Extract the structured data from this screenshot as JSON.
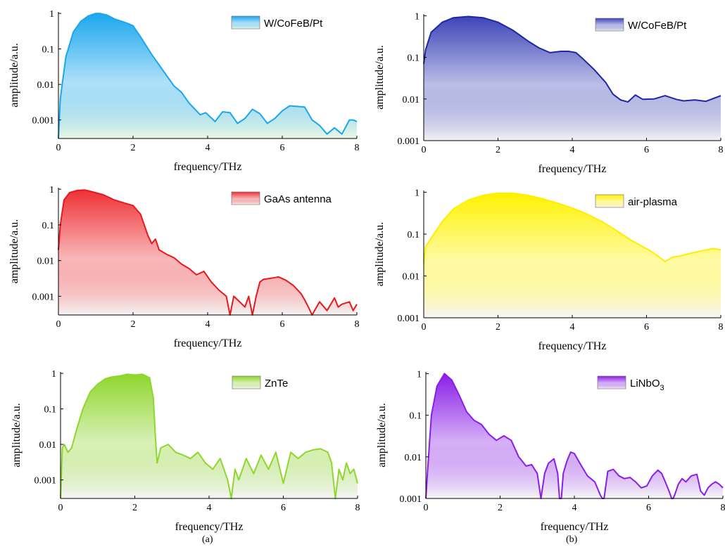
{
  "captions": {
    "a": "(a)",
    "b": "(b)"
  },
  "chart_data": [
    {
      "id": "a1",
      "type": "area",
      "legend": "W/CoFeB/Pt",
      "color": "#1aa7ee",
      "fill_top": "#1aa7ee",
      "fill_bottom": "#e8f7e0",
      "xlabel": "frequency/THz",
      "ylabel": "amplitude/a.u.",
      "xlim": [
        0,
        8
      ],
      "ylim": [
        0.0003,
        1.1
      ],
      "yscale": "log",
      "xticks": [
        "0",
        "2",
        "4",
        "6",
        "8"
      ],
      "yticks": [
        "0.001",
        "0.01",
        "0.1",
        "1"
      ],
      "x": [
        0,
        0.05,
        0.2,
        0.4,
        0.6,
        0.8,
        1.0,
        1.1,
        1.3,
        1.5,
        1.8,
        2.0,
        2.2,
        2.5,
        2.8,
        3.1,
        3.3,
        3.5,
        3.8,
        3.95,
        4.2,
        4.4,
        4.6,
        4.8,
        5.0,
        5.2,
        5.4,
        5.6,
        5.8,
        6.0,
        6.2,
        6.4,
        6.6,
        6.8,
        7.0,
        7.2,
        7.4,
        7.6,
        7.8,
        7.9,
        8.0
      ],
      "y": [
        0.0003,
        0.004,
        0.06,
        0.3,
        0.6,
        0.85,
        1.0,
        1.0,
        0.9,
        0.7,
        0.55,
        0.45,
        0.22,
        0.07,
        0.025,
        0.009,
        0.006,
        0.003,
        0.0014,
        0.0016,
        0.0009,
        0.0017,
        0.0016,
        0.0008,
        0.0011,
        0.002,
        0.0015,
        0.0008,
        0.0011,
        0.0018,
        0.0025,
        0.0024,
        0.0023,
        0.001,
        0.0007,
        0.0004,
        0.0006,
        0.0004,
        0.001,
        0.001,
        0.0009
      ]
    },
    {
      "id": "b1",
      "type": "area",
      "legend": "W/CoFeB/Pt",
      "color": "#1f27a6",
      "fill_top": "#3d45b8",
      "fill_bottom": "#f2f2f2",
      "xlabel": "frequency/THz",
      "ylabel": "amplitude/a.u.",
      "xlim": [
        0,
        8
      ],
      "ylim": [
        0.001,
        1.1
      ],
      "yscale": "log",
      "xticks": [
        "0",
        "2",
        "4",
        "6",
        "8"
      ],
      "yticks": [
        "0.001",
        "0.01",
        "0.1",
        "1"
      ],
      "x": [
        0,
        0.05,
        0.2,
        0.5,
        0.8,
        1.2,
        1.6,
        2.0,
        2.4,
        2.8,
        3.1,
        3.4,
        3.7,
        3.9,
        4.1,
        4.3,
        4.6,
        4.9,
        5.1,
        5.3,
        5.5,
        5.7,
        5.9,
        6.2,
        6.5,
        6.8,
        7.0,
        7.3,
        7.6,
        8.0
      ],
      "y": [
        0.07,
        0.15,
        0.4,
        0.7,
        0.9,
        0.96,
        0.9,
        0.7,
        0.45,
        0.25,
        0.17,
        0.13,
        0.14,
        0.14,
        0.13,
        0.09,
        0.05,
        0.025,
        0.013,
        0.0095,
        0.0085,
        0.0125,
        0.0098,
        0.01,
        0.012,
        0.0098,
        0.009,
        0.0095,
        0.0088,
        0.012
      ]
    },
    {
      "id": "a2",
      "type": "area",
      "legend": "GaAs antenna",
      "color": "#e8181c",
      "fill_top": "#ee3136",
      "fill_bottom": "#f3f3f3",
      "xlabel": "frequency/THz",
      "ylabel": "amplitude/a.u.",
      "xlim": [
        0,
        8
      ],
      "ylim": [
        0.0003,
        1.1
      ],
      "yscale": "log",
      "xticks": [
        "0",
        "2",
        "4",
        "6",
        "8"
      ],
      "yticks": [
        "0.001",
        "0.01",
        "0.1",
        "1"
      ],
      "x": [
        0,
        0.05,
        0.15,
        0.3,
        0.5,
        0.7,
        0.9,
        1.2,
        1.5,
        1.8,
        2.0,
        2.2,
        2.4,
        2.5,
        2.6,
        2.7,
        2.9,
        3.1,
        3.3,
        3.5,
        3.7,
        3.9,
        4.1,
        4.3,
        4.5,
        4.6,
        4.7,
        4.8,
        5.0,
        5.1,
        5.2,
        5.3,
        5.4,
        5.5,
        5.7,
        5.9,
        6.1,
        6.3,
        6.5,
        6.6,
        6.7,
        6.8,
        7.0,
        7.2,
        7.4,
        7.5,
        7.6,
        7.8,
        7.9,
        8.0
      ],
      "y": [
        0.02,
        0.1,
        0.5,
        0.8,
        0.92,
        0.95,
        0.85,
        0.7,
        0.5,
        0.4,
        0.35,
        0.2,
        0.05,
        0.03,
        0.04,
        0.02,
        0.015,
        0.012,
        0.008,
        0.006,
        0.004,
        0.005,
        0.0025,
        0.0015,
        0.001,
        0.0003,
        0.001,
        0.0008,
        0.0005,
        0.001,
        0.0003,
        0.001,
        0.0025,
        0.003,
        0.0032,
        0.0035,
        0.0028,
        0.002,
        0.0012,
        0.0008,
        0.0005,
        0.0003,
        0.0007,
        0.0004,
        0.0009,
        0.0005,
        0.0006,
        0.0007,
        0.0004,
        0.0006
      ]
    },
    {
      "id": "b2",
      "type": "area",
      "legend": "air-plasma",
      "color": "#ffee00",
      "fill_top": "#fff200",
      "fill_bottom": "#f5f5f5",
      "xlabel": "frequency/THz",
      "ylabel": "amplitude/a.u.",
      "xlim": [
        0,
        8
      ],
      "ylim": [
        0.001,
        1.1
      ],
      "yscale": "log",
      "xticks": [
        "0",
        "2",
        "4",
        "6",
        "8"
      ],
      "yticks": [
        "0.001",
        "0.01",
        "0.1",
        "1"
      ],
      "x": [
        0,
        0.05,
        0.2,
        0.5,
        0.8,
        1.2,
        1.6,
        2.0,
        2.4,
        2.8,
        3.2,
        3.6,
        4.0,
        4.4,
        4.8,
        5.2,
        5.6,
        5.9,
        6.1,
        6.3,
        6.5,
        6.7,
        6.9,
        7.2,
        7.5,
        7.8,
        8.0
      ],
      "y": [
        0.02,
        0.05,
        0.08,
        0.2,
        0.4,
        0.65,
        0.85,
        0.95,
        0.95,
        0.85,
        0.7,
        0.55,
        0.42,
        0.3,
        0.2,
        0.12,
        0.07,
        0.05,
        0.04,
        0.03,
        0.022,
        0.028,
        0.03,
        0.035,
        0.04,
        0.045,
        0.042
      ]
    },
    {
      "id": "a3",
      "type": "area",
      "legend": "ZnTe",
      "color": "#8fd62e",
      "fill_top": "#8fd62e",
      "fill_bottom": "#f4f4f4",
      "xlabel": "frequency/THz",
      "ylabel": "amplitude/a.u.",
      "xlim": [
        0,
        8
      ],
      "ylim": [
        0.0003,
        1.1
      ],
      "yscale": "log",
      "xticks": [
        "0",
        "2",
        "4",
        "6",
        "8"
      ],
      "yticks": [
        "0.001",
        "0.01",
        "0.1",
        "1"
      ],
      "x": [
        0,
        0.05,
        0.1,
        0.2,
        0.3,
        0.45,
        0.6,
        0.8,
        1.0,
        1.2,
        1.4,
        1.6,
        1.8,
        2.0,
        2.2,
        2.4,
        2.5,
        2.55,
        2.6,
        2.7,
        2.9,
        3.1,
        3.3,
        3.5,
        3.7,
        3.9,
        4.1,
        4.3,
        4.5,
        4.6,
        4.7,
        4.8,
        5.0,
        5.2,
        5.4,
        5.6,
        5.8,
        6.0,
        6.2,
        6.4,
        6.6,
        6.8,
        7.0,
        7.2,
        7.3,
        7.4,
        7.5,
        7.6,
        7.7,
        7.8,
        7.9,
        8.0
      ],
      "y": [
        0.0003,
        0.008,
        0.01,
        0.006,
        0.008,
        0.03,
        0.1,
        0.3,
        0.5,
        0.7,
        0.8,
        0.85,
        0.95,
        0.9,
        0.95,
        0.75,
        0.2,
        0.02,
        0.003,
        0.008,
        0.01,
        0.006,
        0.005,
        0.004,
        0.006,
        0.003,
        0.002,
        0.004,
        0.001,
        0.0003,
        0.002,
        0.001,
        0.004,
        0.0015,
        0.005,
        0.002,
        0.006,
        0.0008,
        0.006,
        0.004,
        0.006,
        0.007,
        0.0075,
        0.006,
        0.003,
        0.0003,
        0.002,
        0.001,
        0.003,
        0.0015,
        0.002,
        0.0008
      ]
    },
    {
      "id": "b3",
      "type": "area",
      "legend": "LiNbO",
      "legend_sub": "3",
      "color": "#8a1ee8",
      "fill_top": "#8a1ee8",
      "fill_bottom": "#f6f6f6",
      "xlabel": "frequency/THz",
      "ylabel": "amplitude/a.u.",
      "xlim": [
        0,
        8
      ],
      "ylim": [
        0.001,
        1.1
      ],
      "yscale": "log",
      "xticks": [
        "0",
        "2",
        "4",
        "6",
        "8"
      ],
      "yticks": [
        "0.001",
        "0.01",
        "0.1",
        "1"
      ],
      "x": [
        0,
        0.05,
        0.15,
        0.3,
        0.5,
        0.7,
        0.9,
        1.1,
        1.3,
        1.5,
        1.7,
        1.9,
        2.1,
        2.3,
        2.5,
        2.7,
        2.85,
        3.0,
        3.05,
        3.1,
        3.2,
        3.3,
        3.45,
        3.55,
        3.6,
        3.65,
        3.7,
        3.8,
        3.9,
        4.0,
        4.15,
        4.35,
        4.55,
        4.7,
        4.75,
        4.8,
        4.9,
        5.05,
        5.2,
        5.35,
        5.5,
        5.65,
        5.8,
        5.95,
        6.1,
        6.25,
        6.35,
        6.45,
        6.55,
        6.62,
        6.66,
        6.7,
        6.8,
        6.9,
        7.0,
        7.15,
        7.3,
        7.4,
        7.5,
        7.6,
        7.7,
        7.8,
        7.9,
        8.0
      ],
      "y": [
        0.001,
        0.005,
        0.1,
        0.5,
        1.0,
        0.7,
        0.3,
        0.12,
        0.075,
        0.06,
        0.035,
        0.025,
        0.032,
        0.025,
        0.01,
        0.006,
        0.0065,
        0.004,
        0.002,
        0.001,
        0.004,
        0.007,
        0.009,
        0.004,
        0.001,
        0.001,
        0.004,
        0.008,
        0.013,
        0.012,
        0.007,
        0.0035,
        0.0025,
        0.0012,
        0.001,
        0.001,
        0.0045,
        0.005,
        0.0035,
        0.003,
        0.0032,
        0.0025,
        0.0018,
        0.002,
        0.0035,
        0.0048,
        0.004,
        0.0025,
        0.0015,
        0.001,
        0.001,
        0.0012,
        0.0022,
        0.003,
        0.0025,
        0.0035,
        0.0038,
        0.0015,
        0.0012,
        0.0018,
        0.0022,
        0.0025,
        0.0022,
        0.0018
      ]
    }
  ]
}
